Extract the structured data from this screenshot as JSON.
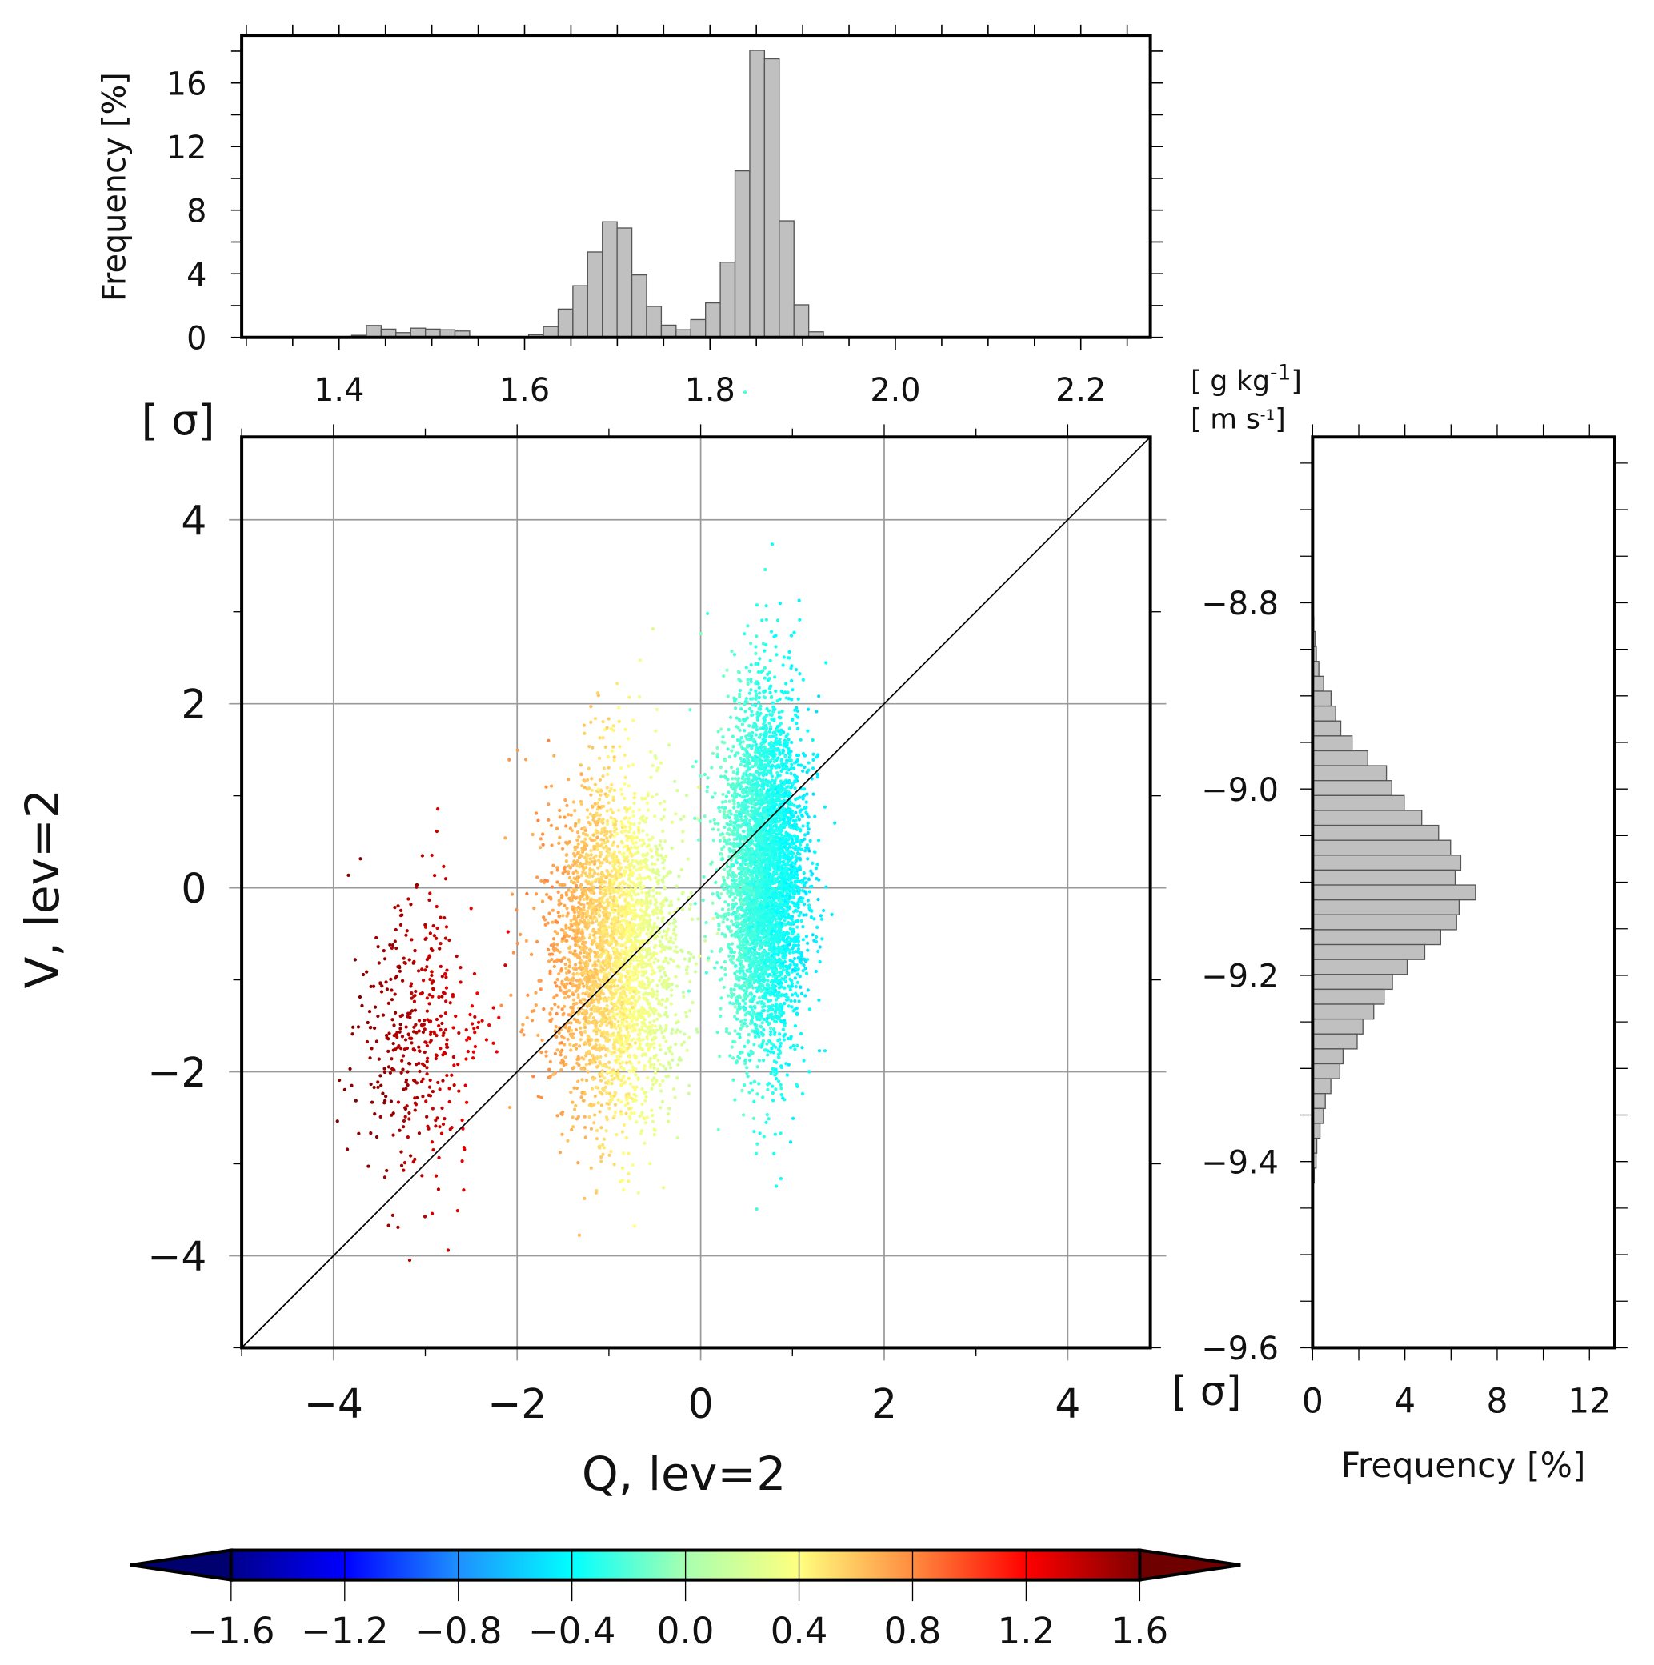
{
  "chart_data": [
    {
      "type": "bar",
      "name": "top-histogram",
      "orientation": "vertical",
      "ylabel": "Frequency [%]",
      "xlim": [
        1.295,
        2.275
      ],
      "ylim": [
        0,
        19
      ],
      "xticks": [
        1.4,
        1.6,
        1.8,
        2.0,
        2.2
      ],
      "xtick_labels": [
        "1.4",
        "1.6",
        "1.8",
        "2.0",
        "2.2"
      ],
      "yticks": [
        0,
        4,
        8,
        12,
        16
      ],
      "ytick_labels": [
        "0",
        "4",
        "8",
        "12",
        "16"
      ],
      "bin_start": 1.4136,
      "bin_width": 0.0159,
      "values": [
        0.13,
        0.75,
        0.52,
        0.3,
        0.58,
        0.52,
        0.48,
        0.4,
        0,
        0,
        0,
        0,
        0.17,
        0.68,
        1.78,
        3.25,
        5.37,
        7.27,
        6.88,
        3.93,
        1.95,
        0.77,
        0.48,
        1.12,
        2.17,
        4.73,
        10.47,
        18.05,
        17.52,
        7.33,
        2.05,
        0.35
      ]
    },
    {
      "type": "scatter",
      "name": "main-scatter",
      "xlabel": "Q, lev=2",
      "ylabel": "V, lev=2",
      "unit_label": "[ σ]",
      "xlim": [
        -5,
        4.9
      ],
      "ylim": [
        -5,
        4.9
      ],
      "xticks": [
        -4,
        -2,
        0,
        2,
        4
      ],
      "xtick_labels": [
        "−4",
        "−2",
        "0",
        "2",
        "4"
      ],
      "yticks": [
        -4,
        -2,
        0,
        2,
        4
      ],
      "ytick_labels": [
        "−4",
        "−2",
        "0",
        "2",
        "4"
      ],
      "grid": true,
      "reference_line": "y = x",
      "clusters": [
        {
          "name": "dark-red",
          "count": 420,
          "x_mean": -3.1,
          "x_sd": 0.33,
          "y_mean": -1.6,
          "y_sd": 0.85,
          "color_value_range": [
            1.27,
            1.6
          ]
        },
        {
          "name": "orange-yellow",
          "count": 3200,
          "x_mean": -0.95,
          "x_sd": 0.35,
          "y_mean": -0.7,
          "y_sd": 0.9,
          "color_value_range": [
            0.2,
            0.75
          ]
        },
        {
          "name": "cyan",
          "count": 4500,
          "x_mean": 0.7,
          "x_sd": 0.22,
          "y_mean": 0.15,
          "y_sd": 0.95,
          "color_value_range": [
            -0.45,
            -0.15
          ]
        }
      ]
    },
    {
      "type": "bar",
      "name": "right-histogram",
      "orientation": "horizontal",
      "xlabel": "Frequency [%]",
      "unit_label": "[ σ]",
      "units_top": [
        "[ g kg",
        "-1",
        "]"
      ],
      "units_bottom": [
        "[ m  s",
        "-1",
        "]"
      ],
      "xlim": [
        0,
        13.1
      ],
      "ylim": [
        -9.6,
        -8.622
      ],
      "xticks": [
        0,
        4,
        8,
        12
      ],
      "xtick_labels": [
        "0",
        "4",
        "8",
        "12"
      ],
      "yticks": [
        -8.8,
        -9.0,
        -9.2,
        -9.4,
        -9.6
      ],
      "ytick_labels": [
        "−8.8",
        "−9.0",
        "−9.2",
        "−9.4",
        "−9.6"
      ],
      "bin_top": -8.799,
      "bin_height": 0.016,
      "values": [
        0.03,
        0.05,
        0.12,
        0.16,
        0.27,
        0.48,
        0.8,
        1.0,
        1.22,
        1.71,
        2.39,
        3.2,
        3.43,
        3.97,
        4.73,
        5.46,
        5.98,
        6.42,
        6.18,
        7.06,
        6.35,
        6.24,
        5.55,
        4.86,
        4.1,
        3.46,
        3.1,
        2.65,
        2.18,
        1.93,
        1.32,
        1.18,
        0.79,
        0.55,
        0.47,
        0.32,
        0.18,
        0.15,
        0.07
      ]
    },
    {
      "type": "colorbar",
      "name": "colorbar",
      "range": [
        -1.6,
        1.6
      ],
      "ticks": [
        -1.6,
        -1.2,
        -0.8,
        -0.4,
        0.0,
        0.4,
        0.8,
        1.2,
        1.6
      ],
      "tick_labels": [
        "−1.6",
        "−1.2",
        "−0.8",
        "−0.4",
        "0.0",
        "0.4",
        "0.8",
        "1.2",
        "1.6"
      ],
      "colors": [
        "#00008b",
        "#0000ff",
        "#1e90ff",
        "#00ffff",
        "#a8ffb0",
        "#ffff80",
        "#ff8c40",
        "#ff0000",
        "#800000"
      ],
      "extend_low_color": "#00006e",
      "extend_high_color": "#6e0000"
    }
  ],
  "colors": {
    "bar_fill": "#c0c0c0",
    "bar_edge": "#555555",
    "grid": "#9a9a9a"
  }
}
